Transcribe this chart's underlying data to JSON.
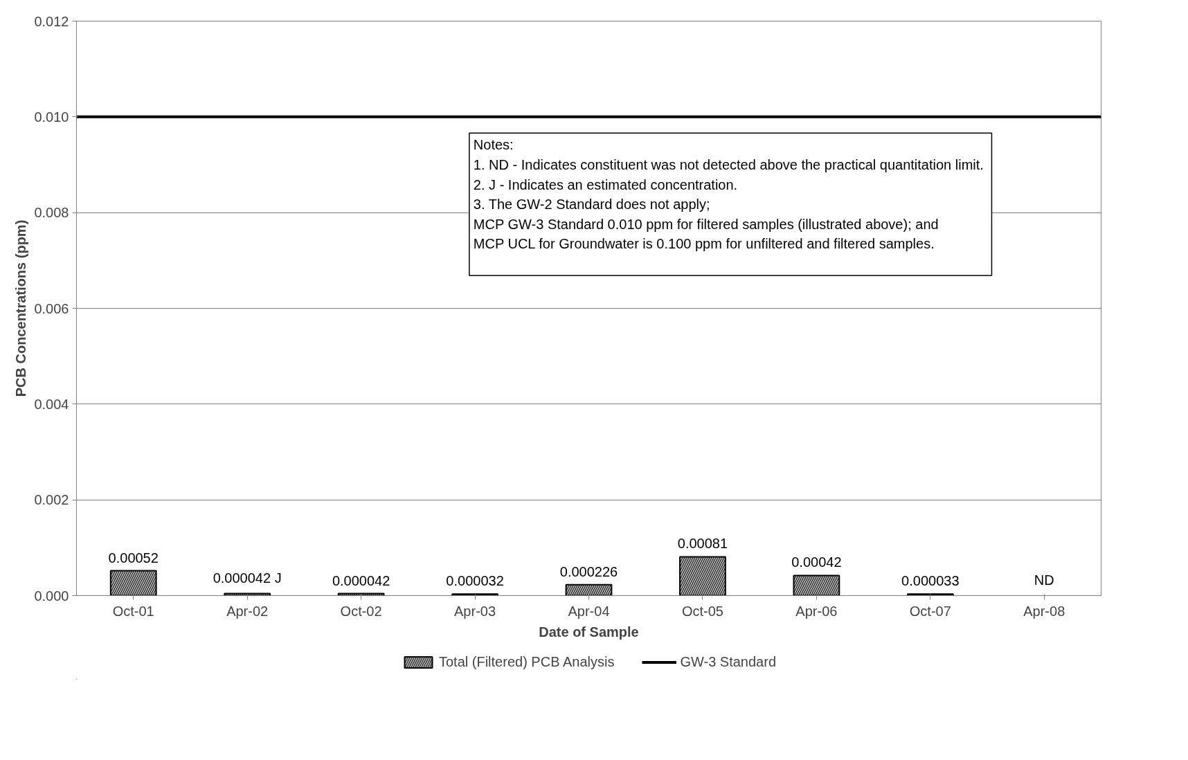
{
  "chart_data": {
    "type": "bar",
    "xlabel": "Date of Sample",
    "ylabel": "PCB Concentrations (ppm)",
    "categories": [
      "Oct-01",
      "Apr-02",
      "Oct-02",
      "Apr-03",
      "Apr-04",
      "Oct-05",
      "Apr-06",
      "Oct-07",
      "Apr-08"
    ],
    "series": [
      {
        "name": "Total (Filtered) PCB Analysis",
        "color": "#b0b0b0",
        "values": [
          0.00052,
          4.2e-05,
          4.2e-05,
          3.2e-05,
          0.000226,
          0.00081,
          0.00042,
          3.3e-05,
          null
        ],
        "value_labels": [
          "0.00052",
          "0.000042 J",
          "0.000042",
          "0.000032",
          "0.000226",
          "0.00081",
          "0.00042",
          "0.000033",
          "ND"
        ]
      }
    ],
    "ref_lines": [
      {
        "axis": "y",
        "value": 0.01,
        "label": "GW-3 Standard",
        "color": "#000000",
        "line_style": "solid"
      }
    ],
    "ylim": [
      0,
      0.012
    ],
    "yticks": [
      {
        "value": 0,
        "label": "0.000"
      },
      {
        "value": 0.002,
        "label": "0.002"
      },
      {
        "value": 0.004,
        "label": "0.004"
      },
      {
        "value": 0.006,
        "label": "0.006"
      },
      {
        "value": 0.008,
        "label": "0.008"
      },
      {
        "value": 0.01,
        "label": "0.010"
      },
      {
        "value": 0.012,
        "label": "0.012"
      }
    ],
    "grid": "y",
    "legend": "bottom",
    "annotations": [
      "Notes:",
      "1.  ND - Indicates constituent was not detected above the practical quantitation limit.",
      "2.  J - Indicates an estimated concentration.",
      "3.  The GW-2 Standard does not apply;",
      "     MCP GW-3 Standard 0.010 ppm for filtered samples (illustrated above); and",
      "     MCP UCL for Groundwater is 0.100 ppm for unfiltered and filtered samples."
    ]
  }
}
